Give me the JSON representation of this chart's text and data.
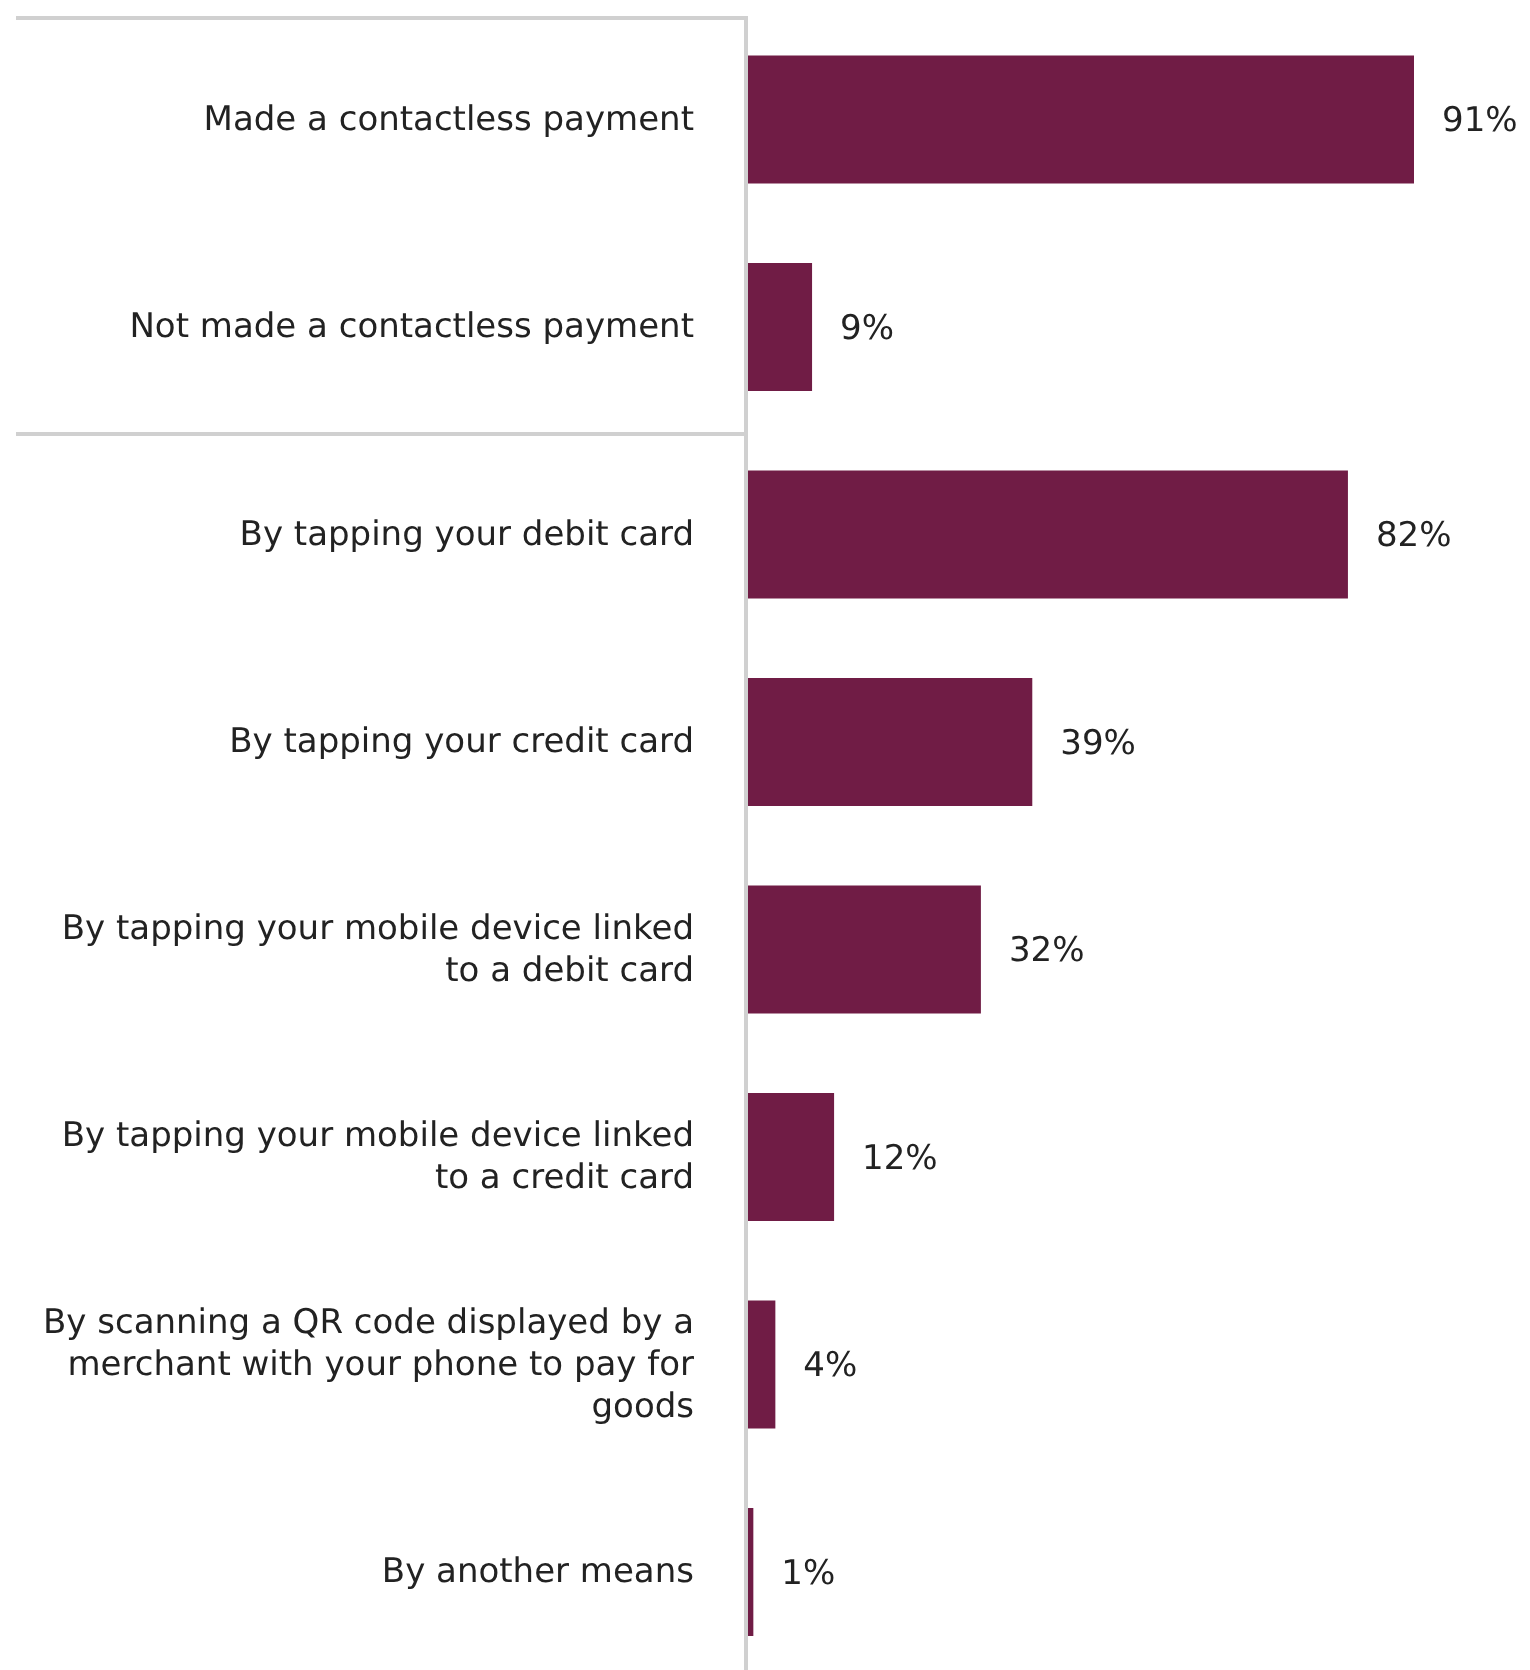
{
  "chart_data": {
    "type": "bar",
    "orientation": "horizontal",
    "categories": [
      "Made a contactless payment",
      "Not made a contactless payment",
      "By tapping your debit card",
      "By tapping your credit card",
      "By tapping your mobile device linked to a debit card",
      "By tapping your mobile device linked to a credit card",
      "By scanning a QR code displayed by a merchant with your phone to pay for goods",
      "By another means"
    ],
    "values": [
      91,
      9,
      82,
      39,
      32,
      12,
      4,
      1
    ],
    "value_labels": [
      "91%",
      "9%",
      "82%",
      "39%",
      "32%",
      "12%",
      "4%",
      "1%"
    ],
    "color": "#701c45"
  }
}
